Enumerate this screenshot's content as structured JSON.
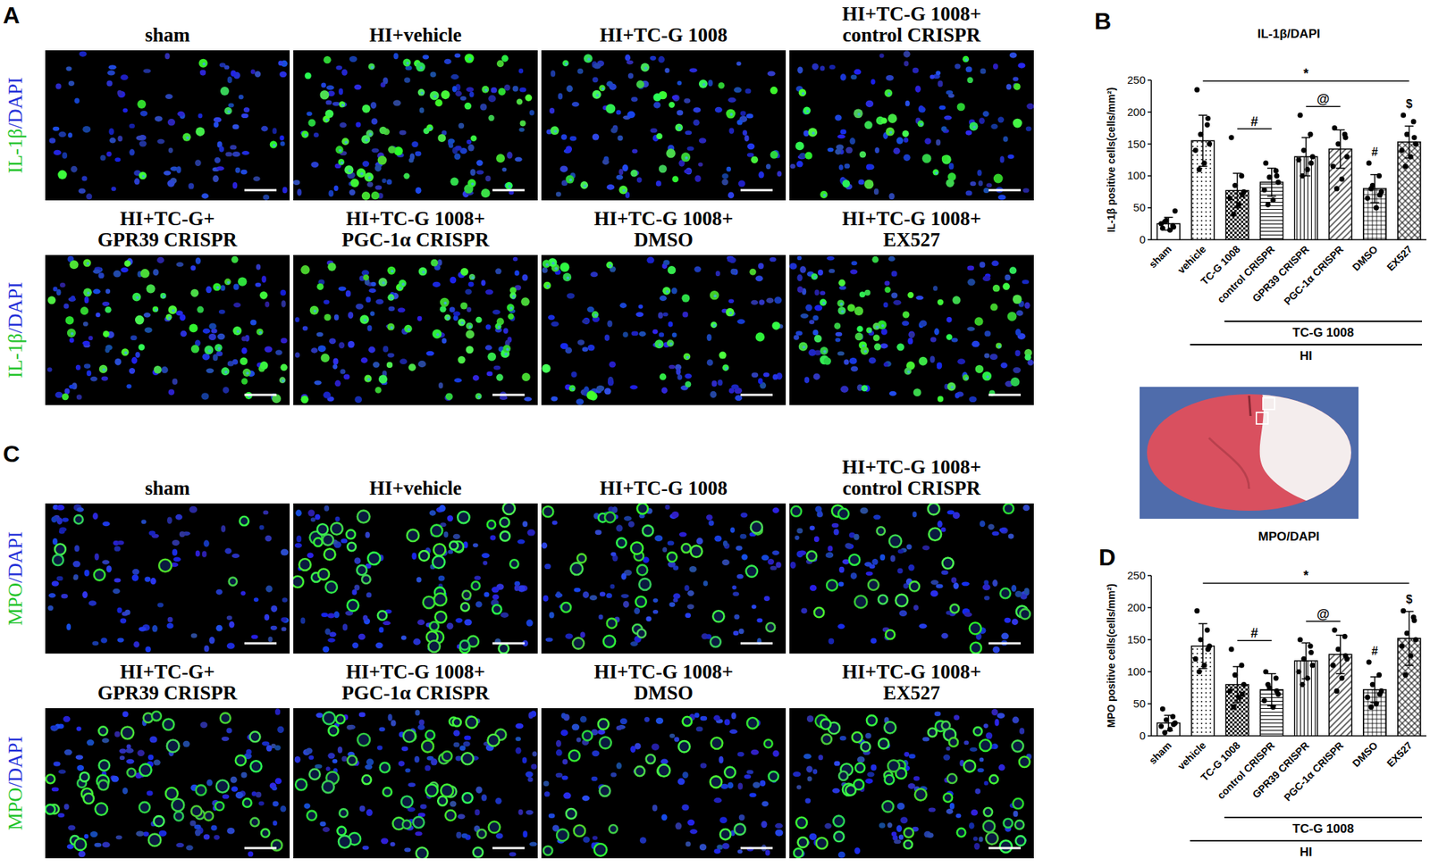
{
  "figure": {
    "image_panels": [
      {
        "label": "A",
        "channel_label": [
          "IL-1β",
          "/DAPI"
        ],
        "titles": [
          [
            "sham"
          ],
          [
            "HI+vehicle"
          ],
          [
            "HI+TC-G 1008"
          ],
          [
            "HI+TC-G 1008+",
            "control CRISPR"
          ],
          [
            "HI+TC-G+",
            "GPR39 CRISPR"
          ],
          [
            "HI+TC-G 1008+",
            "PGC-1α CRISPR"
          ],
          [
            "HI+TC-G 1008+",
            "DMSO"
          ],
          [
            "HI+TC-G 1008+",
            "EX527"
          ]
        ]
      },
      {
        "label": "C",
        "channel_label": [
          "MPO",
          "/DAPI"
        ],
        "titles": [
          [
            "sham"
          ],
          [
            "HI+vehicle"
          ],
          [
            "HI+TC-G 1008"
          ],
          [
            "HI+TC-G 1008+",
            "control CRISPR"
          ],
          [
            "HI+TC-G+",
            "GPR39 CRISPR"
          ],
          [
            "HI+TC-G 1008+",
            "PGC-1α CRISPR"
          ],
          [
            "HI+TC-G 1008+",
            "DMSO"
          ],
          [
            "HI+TC-G 1008+",
            "EX527"
          ]
        ]
      }
    ],
    "chart_panel_labels": [
      "B",
      "D"
    ]
  },
  "chart_data": [
    {
      "type": "bar",
      "title": "IL-1β/DAPI",
      "ylabel": "IL-1β positive cells(cells/mm²)",
      "categories": [
        "sham",
        "vehicle",
        "TC-G 1008",
        "control CRISPR",
        "GPR39 CRISPR",
        "PGC-1α CRISPR",
        "DMSO",
        "EX527"
      ],
      "values": [
        25,
        155,
        77,
        90,
        130,
        142,
        80,
        153
      ],
      "errors": [
        10,
        40,
        27,
        22,
        30,
        30,
        22,
        25
      ],
      "points": [
        [
          18,
          22,
          30,
          45,
          25,
          15,
          28,
          20
        ],
        [
          235,
          180,
          165,
          150,
          140,
          120,
          110,
          190
        ],
        [
          160,
          100,
          85,
          75,
          65,
          55,
          40,
          70
        ],
        [
          120,
          108,
          98,
          90,
          78,
          62,
          55,
          100
        ],
        [
          195,
          165,
          140,
          130,
          125,
          110,
          100,
          120
        ],
        [
          175,
          165,
          150,
          130,
          115,
          95,
          80,
          160
        ],
        [
          120,
          100,
          85,
          75,
          65,
          50,
          80,
          70
        ],
        [
          195,
          185,
          165,
          150,
          140,
          130,
          115,
          160
        ]
      ],
      "color": "#ffffff",
      "ylim": [
        0,
        250
      ],
      "yticks": [
        0,
        50,
        100,
        150,
        200,
        250
      ],
      "grid": false,
      "annotations": [
        {
          "text": "*",
          "from": 1,
          "to": 7
        },
        {
          "text": "#",
          "from": 2,
          "to": 3
        },
        {
          "text": "@",
          "from": 4,
          "to": 5
        },
        {
          "text": "#",
          "from": 6,
          "to": 6
        },
        {
          "text": "$",
          "from": 7,
          "to": 7
        }
      ],
      "groups": [
        {
          "label": "TC-G 1008",
          "from": 2,
          "to": 7
        },
        {
          "label": "HI",
          "from": 1,
          "to": 7
        }
      ]
    },
    {
      "type": "bar",
      "title": "MPO/DAPI",
      "ylabel": "MPO positive cells(cells/mm²)",
      "categories": [
        "sham",
        "vehicle",
        "TC-G 1008",
        "control CRISPR",
        "GPR39 CRISPR",
        "PGC-1α CRISPR",
        "DMSO",
        "EX527"
      ],
      "values": [
        20,
        140,
        80,
        72,
        117,
        127,
        72,
        152
      ],
      "errors": [
        12,
        35,
        28,
        25,
        28,
        30,
        20,
        42
      ],
      "points": [
        [
          42,
          30,
          25,
          20,
          15,
          10,
          5,
          18
        ],
        [
          195,
          165,
          150,
          140,
          120,
          110,
          100,
          135
        ],
        [
          135,
          110,
          95,
          80,
          70,
          60,
          45,
          65
        ],
        [
          100,
          90,
          75,
          65,
          55,
          45,
          80,
          70
        ],
        [
          150,
          140,
          120,
          110,
          100,
          90,
          80,
          130
        ],
        [
          165,
          155,
          135,
          120,
          110,
          90,
          70,
          125
        ],
        [
          115,
          95,
          80,
          70,
          60,
          50,
          45,
          65
        ],
        [
          195,
          185,
          160,
          150,
          140,
          125,
          95,
          180
        ]
      ],
      "color": "#ffffff",
      "ylim": [
        0,
        250
      ],
      "yticks": [
        0,
        50,
        100,
        150,
        200,
        250
      ],
      "grid": false,
      "annotations": [
        {
          "text": "*",
          "from": 1,
          "to": 7
        },
        {
          "text": "#",
          "from": 2,
          "to": 3
        },
        {
          "text": "@",
          "from": 4,
          "to": 5
        },
        {
          "text": "#",
          "from": 6,
          "to": 6
        },
        {
          "text": "$",
          "from": 7,
          "to": 7
        }
      ],
      "groups": [
        {
          "label": "TC-G 1008",
          "from": 2,
          "to": 7
        },
        {
          "label": "HI",
          "from": 1,
          "to": 7
        }
      ]
    }
  ]
}
